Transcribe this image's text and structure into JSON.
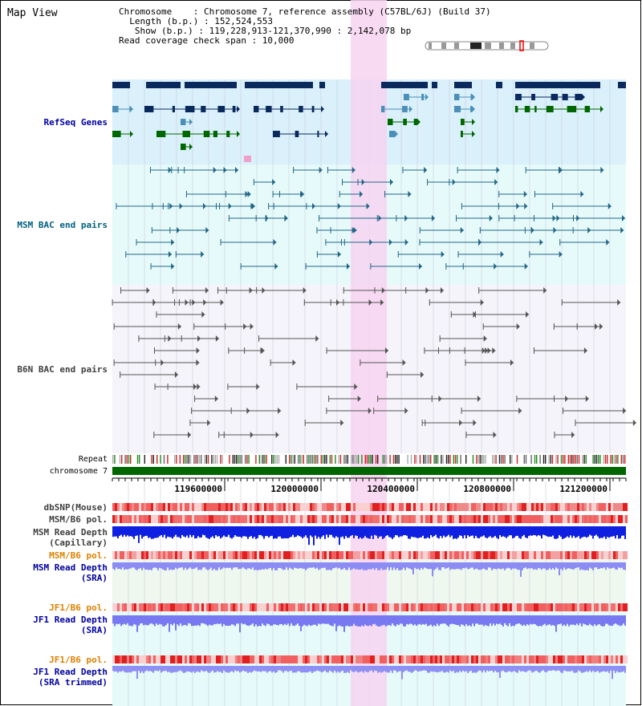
{
  "title": "Map View",
  "info": {
    "chromosome": "Chromosome    : Chromosome 7, reference assembly (C57BL/6J) (Build 37)",
    "length": "  Length (b.p.) : 152,524,553",
    "show": "   Show (b.p.) : 119,228,913-121,370,990 : 2,142,078 bp",
    "span": "Read coverage check span : 10,000"
  },
  "tracks": {
    "refseq": "RefSeq Genes",
    "msm_bac": "MSM BAC end pairs",
    "b6n_bac": "B6N BAC end pairs",
    "repeat": "Repeat",
    "chromosome": "chromosome 7",
    "dbsnp": "dbSNP(Mouse)",
    "msm_pol": "MSM/B6 pol.",
    "msm_depth_cap_1": "MSM Read Depth",
    "msm_depth_cap_2": "(Capillary)",
    "msm_pol_sra": "MSM/B6 pol.",
    "msm_depth_sra_1": "MSM Read Depth",
    "msm_depth_sra_2": "(SRA)",
    "jf1_pol": "JF1/B6 pol.",
    "jf1_depth_1": "JF1 Read Depth",
    "jf1_depth_2": "(SRA)",
    "jf1_pol_trim": "JF1/B6 pol.",
    "jf1_trim_1": "JF1 Read Depth",
    "jf1_trim_2": "(SRA trimmed)"
  },
  "ruler": {
    "ticks": [
      "119600000",
      "120000000",
      "120400000",
      "120800000",
      "121200000"
    ]
  },
  "colors": {
    "gene_dark": "#0a2a5e",
    "gene_light": "#4b8fb8",
    "gene_green": "#006600",
    "msm_bac": "#226688",
    "b6n_bac": "#555555",
    "highlight": "#f7d4f1",
    "label_blue": "#0000a0",
    "label_teal": "#006080",
    "label_gray": "#404040",
    "label_orange": "#e08000"
  }
}
